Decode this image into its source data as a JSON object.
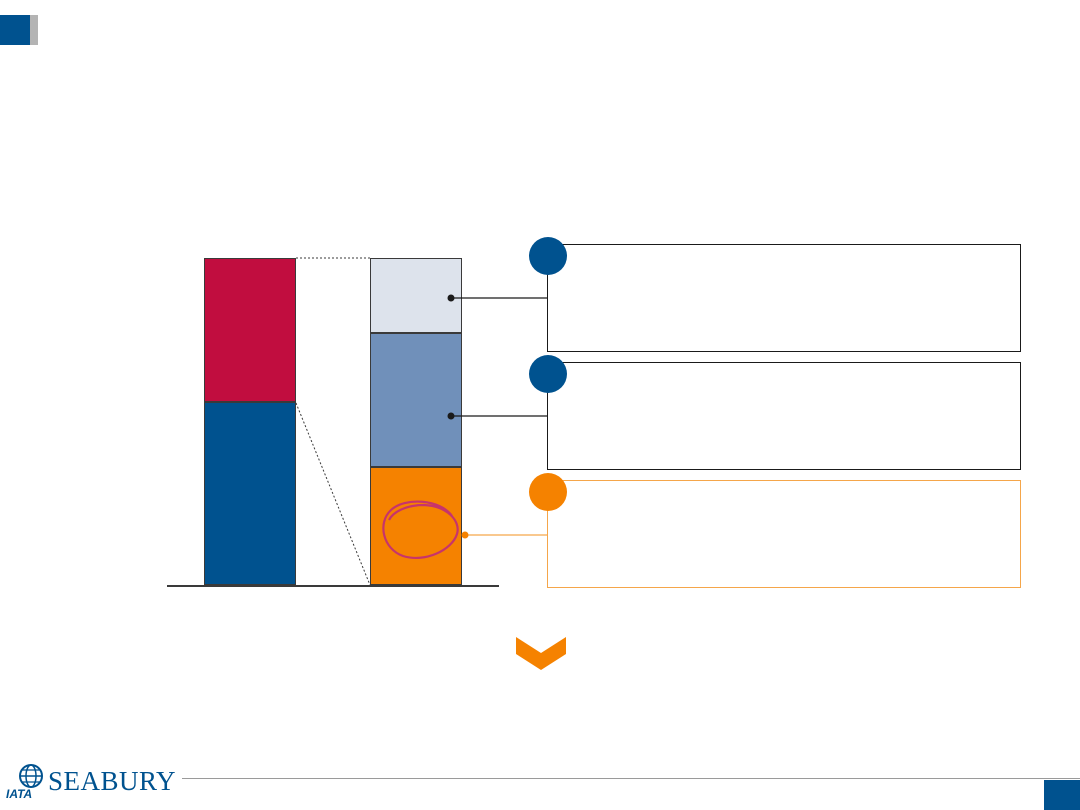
{
  "colors": {
    "navy": "#00528f",
    "crimson": "#c10d3f",
    "light_blue": "#dde3ec",
    "mid_blue": "#7090ba",
    "orange": "#f58200",
    "magenta": "#c7346b",
    "gray": "#b4b4b4",
    "dark_gray": "#3a3a3a"
  },
  "header": {
    "corner_mark_icon": "square-mark-icon"
  },
  "chart_data": {
    "type": "bar",
    "stacked": true,
    "bars": [
      {
        "segments": [
          {
            "color": "#00528f",
            "value": 56
          },
          {
            "color": "#c10d3f",
            "value": 44
          }
        ]
      },
      {
        "segments": [
          {
            "color": "#f58200",
            "value": 36
          },
          {
            "color": "#7090ba",
            "value": 41
          },
          {
            "color": "#dde3ec",
            "value": 23
          }
        ]
      }
    ]
  },
  "callouts": [
    {
      "badge_color": "#00528f",
      "border_color": "#1a1a1a"
    },
    {
      "badge_color": "#00528f",
      "border_color": "#1a1a1a"
    },
    {
      "badge_color": "#f58200",
      "border_color": "#f5a64a"
    }
  ],
  "annotation": {
    "icon": "hand-drawn-circle-icon"
  },
  "conclusion": {
    "icon": "chevron-down-icon"
  },
  "footer": {
    "logo_text": "SEABURY",
    "logo_subtext": "IATA",
    "logo_icon": "globe-icon"
  }
}
